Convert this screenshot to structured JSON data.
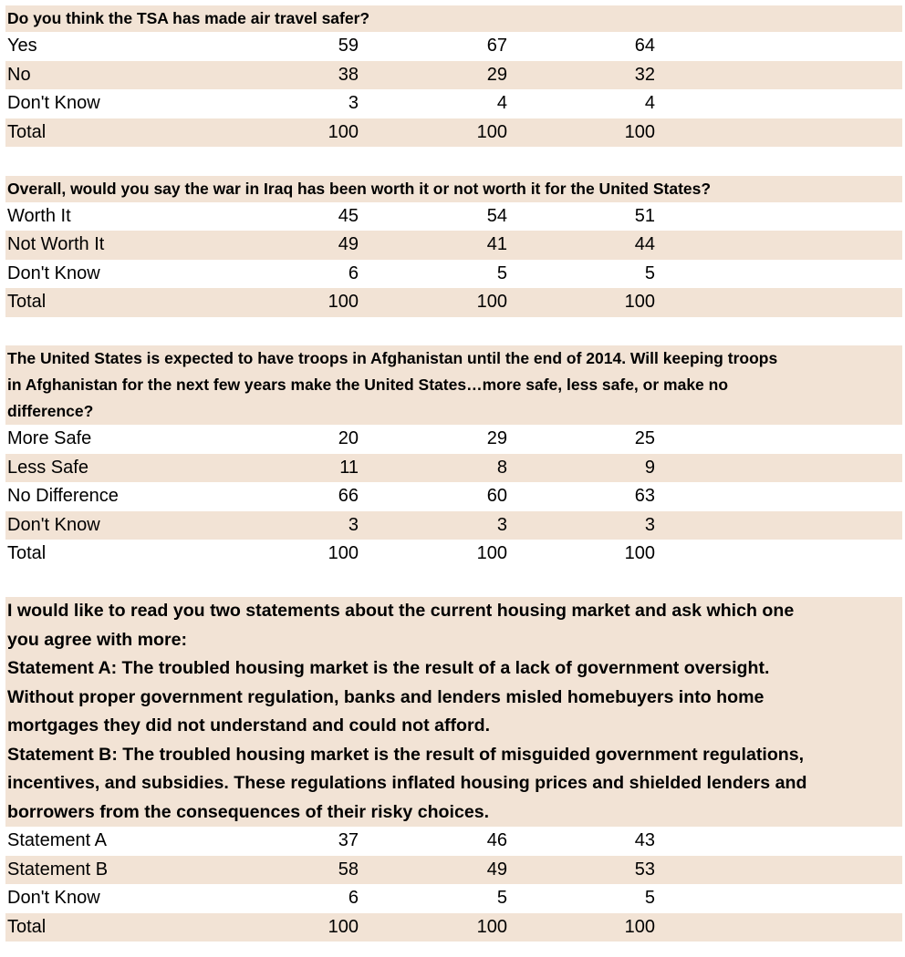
{
  "sections": [
    {
      "question": "Do you think the TSA has made air travel safer?",
      "rows": [
        {
          "label": "Yes",
          "values": [
            "59",
            "67",
            "64"
          ]
        },
        {
          "label": "No",
          "values": [
            "38",
            "29",
            "32"
          ]
        },
        {
          "label": "Don't Know",
          "values": [
            "3",
            "4",
            "4"
          ]
        },
        {
          "label": "Total",
          "values": [
            "100",
            "100",
            "100"
          ]
        }
      ]
    },
    {
      "question": "Overall, would you say the war in Iraq has been worth it or not worth it for the United States?",
      "rows": [
        {
          "label": "Worth It",
          "values": [
            "45",
            "54",
            "51"
          ]
        },
        {
          "label": "Not Worth It",
          "values": [
            "49",
            "41",
            "44"
          ]
        },
        {
          "label": "Don't Know",
          "values": [
            "6",
            "5",
            "5"
          ]
        },
        {
          "label": "Total",
          "values": [
            "100",
            "100",
            "100"
          ]
        }
      ]
    },
    {
      "question_lines": [
        "The United States is expected to have troops in Afghanistan until the end of 2014. Will keeping troops",
        "in Afghanistan for the next few years make the United States…more safe, less safe, or make no",
        "difference?"
      ],
      "rows": [
        {
          "label": "More Safe",
          "values": [
            "20",
            "29",
            "25"
          ]
        },
        {
          "label": "Less Safe",
          "values": [
            "11",
            "8",
            "9"
          ]
        },
        {
          "label": "No Difference",
          "values": [
            "66",
            "60",
            "63"
          ]
        },
        {
          "label": "Don't Know",
          "values": [
            "3",
            "3",
            "3"
          ]
        },
        {
          "label": "Total",
          "values": [
            "100",
            "100",
            "100"
          ]
        }
      ]
    },
    {
      "question_lines": [
        "I would like to read you two statements about the current housing market and ask which one",
        "you agree with more:",
        "Statement A: The troubled housing market is the result of a lack of government oversight.",
        "Without proper government regulation, banks and lenders misled homebuyers into home",
        "mortgages they did not understand and could not afford.",
        "Statement B: The troubled housing market is the result of misguided government regulations,",
        "incentives, and subsidies. These regulations inflated housing prices and shielded lenders and",
        "borrowers from the consequences of their risky choices."
      ],
      "rows": [
        {
          "label": "Statement A",
          "values": [
            "37",
            "46",
            "43"
          ]
        },
        {
          "label": "Statement B",
          "values": [
            "58",
            "49",
            "53"
          ]
        },
        {
          "label": "Don't Know",
          "values": [
            "6",
            "5",
            "5"
          ]
        },
        {
          "label": "Total",
          "values": [
            "100",
            "100",
            "100"
          ]
        }
      ]
    }
  ],
  "colors": {
    "shade": "#f2e3d5",
    "text": "#000000"
  }
}
